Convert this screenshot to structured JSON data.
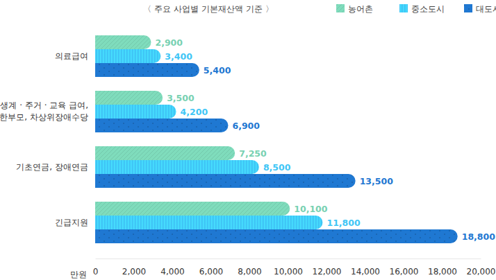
{
  "chart_data": {
    "type": "bar",
    "title": "〈 주요 사업별 기본재산액 기준 〉",
    "orientation": "horizontal",
    "data_labels": true,
    "grid": false,
    "legend": "top-right",
    "x_label": "만원",
    "categories": [
      "의료급여",
      "생계 · 주거 · 교육 급여,\n한부모, 차상위장애수당",
      "기초연금, 장애연금",
      "긴급지원"
    ],
    "series": [
      {
        "name": "농어촌",
        "color": "#7fdcbc",
        "values": [
          2900,
          3500,
          7250,
          10100
        ],
        "value_labels": [
          "2,900",
          "3,500",
          "7,250",
          "10,100"
        ]
      },
      {
        "name": "중소도시",
        "color": "#3fc6f6",
        "values": [
          3400,
          4200,
          8500,
          11800
        ],
        "value_labels": [
          "3,400",
          "4,200",
          "8,500",
          "11,800"
        ]
      },
      {
        "name": "대도시",
        "color": "#1f78d2",
        "values": [
          5400,
          6900,
          13500,
          18800
        ],
        "value_labels": [
          "5,400",
          "6,900",
          "13,500",
          "18,800"
        ]
      }
    ],
    "xlim": [
      0,
      20000
    ],
    "xticks": [
      0,
      {
        "value": 2000,
        "label": "2,000"
      },
      {
        "value": 4000,
        "label": "4,000"
      },
      {
        "value": 6000,
        "label": "6,000"
      },
      {
        "value": 8000,
        "label": "8,000"
      },
      {
        "value": 10000,
        "label": "10,000"
      },
      {
        "value": 12000,
        "label": "12,000"
      },
      {
        "value": 14000,
        "label": "14,000"
      },
      {
        "value": 16000,
        "label": "16,000"
      },
      {
        "value": 18000,
        "label": "18,000"
      },
      {
        "value": 20000,
        "label": "20,000"
      }
    ]
  }
}
